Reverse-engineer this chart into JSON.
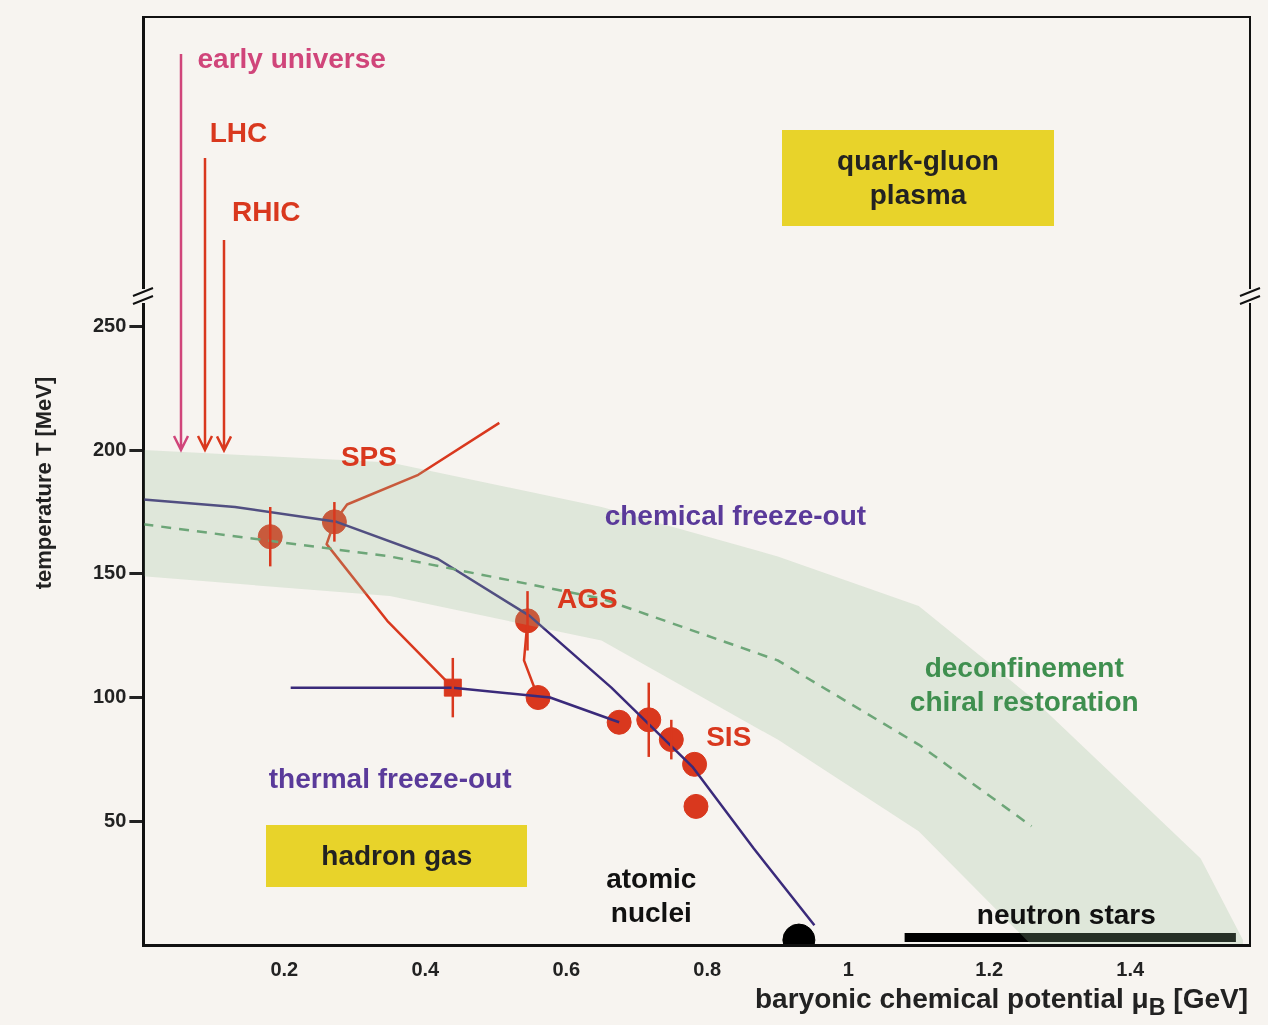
{
  "chart_data": {
    "type": "line",
    "xlabel": "baryonic chemical potential μ$_{B}$ [GeV]",
    "ylabel": "temperature T [MeV]",
    "xlim": [
      0,
      1.57
    ],
    "xticks": [
      0.2,
      0.4,
      0.6,
      0.8,
      1,
      1.2,
      1.4
    ],
    "ylim": [
      0,
      375
    ],
    "yticks": [
      50,
      100,
      150,
      200,
      250
    ],
    "grid": false,
    "legend": false,
    "series": [
      {
        "type": "line",
        "color": "#5f9e6e",
        "line_style": "dashed",
        "x": [
          0,
          0.35,
          0.65,
          0.9,
          1.1,
          1.26,
          1.5,
          1.56
        ],
        "values": [
          170,
          157,
          140,
          115,
          81,
          48,
          null,
          null
        ],
        "lower": [
          149,
          141,
          123,
          83,
          46,
          0,
          0,
          0
        ],
        "upper": [
          200,
          195,
          177,
          157,
          137,
          100,
          35,
          2
        ]
      },
      {
        "type": "line",
        "color": "#3a2a7a",
        "x": [
          0,
          0.13,
          0.274,
          0.418,
          0.548,
          0.664,
          0.779,
          0.866,
          0.952
        ],
        "values": [
          180,
          177,
          171,
          156,
          133,
          104,
          72,
          39,
          8
        ]
      },
      {
        "type": "line",
        "color": "#3a2a7a",
        "x": [
          0.209,
          0.439,
          0.577,
          0.675
        ],
        "values": [
          104,
          104,
          100,
          90
        ]
      },
      {
        "type": "line",
        "color": "#d9381e",
        "x": [
          0.505,
          0.39,
          0.289,
          0.271,
          0.26,
          0.346,
          0.439
        ],
        "values": [
          211,
          190,
          178,
          171,
          162,
          131,
          104
        ]
      },
      {
        "type": "line",
        "color": "#d9381e",
        "x": [
          0.545,
          0.54,
          0.56
        ],
        "values": [
          131,
          115,
          100
        ]
      },
      {
        "type": "scatter",
        "color": "#d9381e",
        "marker": "circle",
        "x": [
          0.18,
          0.271,
          0.545,
          0.675,
          0.717,
          0.749,
          0.782,
          0.784
        ],
        "values": [
          165,
          171,
          131,
          90,
          91,
          83,
          73,
          56
        ],
        "errors": [
          12,
          8,
          12,
          null,
          15,
          8,
          null,
          null
        ]
      },
      {
        "type": "scatter",
        "color": "#d9381e",
        "marker": "square",
        "x": [
          0.439
        ],
        "values": [
          104
        ],
        "errors": [
          12
        ]
      },
      {
        "type": "scatter",
        "color": "#d9381e",
        "marker": "circle",
        "x": [
          0.56
        ],
        "values": [
          100
        ]
      },
      {
        "type": "scatter",
        "color": "#000000",
        "marker": "circle",
        "x": [
          0.93
        ],
        "values": [
          2
        ]
      },
      {
        "type": "line",
        "color": "#000000",
        "x": [
          1.08,
          1.55
        ],
        "values": [
          3,
          3
        ]
      }
    ],
    "annotations": [
      {
        "text": "early universe",
        "x": 0.053,
        "y": 200
      },
      {
        "text": "LHC",
        "x": 0.087,
        "y": 200
      },
      {
        "text": "RHIC",
        "x": 0.115,
        "y": 200
      },
      "quark-gluon\nplasma",
      {
        "text": "SPS",
        "x": 0.32,
        "y": 197
      },
      {
        "text": "AGS",
        "x": 0.63,
        "y": 140
      },
      "SIS",
      "chemical freeze-out",
      "thermal freeze-out",
      "deconfinement\nchiral restoration",
      "hadron gas",
      "atomic\nnuclei",
      "neutron stars"
    ]
  }
}
